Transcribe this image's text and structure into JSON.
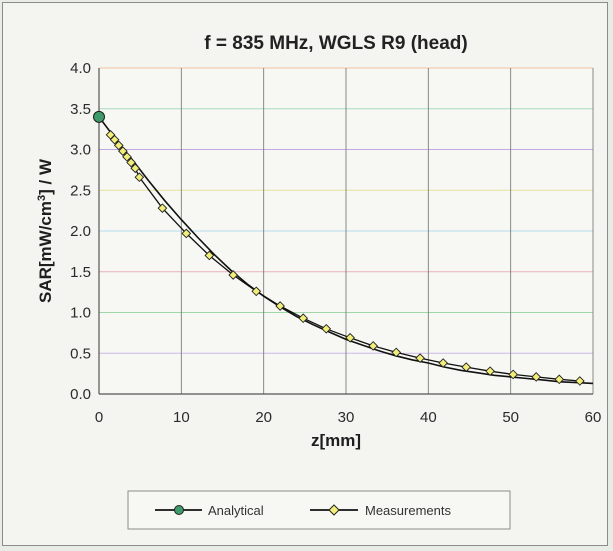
{
  "chart_data": {
    "type": "line",
    "title": "f = 835 MHz, WGLS R9 (head)",
    "xlabel": "z[mm]",
    "ylabel_parts": [
      "SAR[mW/cm",
      "3",
      "] / W"
    ],
    "xlim": [
      0,
      60
    ],
    "ylim": [
      0,
      4
    ],
    "x_ticks": [
      0,
      10,
      20,
      30,
      40,
      50,
      60
    ],
    "x_tick_labels": [
      "0",
      "10",
      "20",
      "30",
      "40",
      "50",
      "60"
    ],
    "y_ticks": [
      0,
      0.5,
      1,
      1.5,
      2,
      2.5,
      3,
      3.5,
      4
    ],
    "y_tick_labels": [
      "0.0",
      "0.5",
      "1.0",
      "1.5",
      "2.0",
      "2.5",
      "3.0",
      "3.5",
      "4.0"
    ],
    "grid": true,
    "legend_position": "bottom",
    "series": [
      {
        "name": "Analytical",
        "color": "#111111",
        "marker": "circle",
        "marker_color": "#3f9a6a",
        "x": [
          0,
          2,
          4,
          6,
          8,
          10,
          12,
          14,
          16,
          18,
          20,
          22,
          24,
          26,
          28,
          30,
          32,
          34,
          36,
          38,
          40,
          42,
          44,
          46,
          48,
          50,
          52,
          54,
          56,
          58,
          60
        ],
        "y": [
          3.4,
          3.13,
          2.88,
          2.62,
          2.37,
          2.14,
          1.92,
          1.71,
          1.52,
          1.35,
          1.2,
          1.07,
          0.95,
          0.85,
          0.76,
          0.67,
          0.6,
          0.53,
          0.47,
          0.42,
          0.38,
          0.33,
          0.29,
          0.26,
          0.23,
          0.21,
          0.19,
          0.17,
          0.15,
          0.14,
          0.13
        ],
        "marker_x": [
          0
        ],
        "marker_y": [
          3.4
        ]
      },
      {
        "name": "Measurements",
        "color": "#111111",
        "marker": "diamond",
        "marker_color": "#f2ee7a",
        "x": [
          1.4,
          1.9,
          2.4,
          2.9,
          3.4,
          3.9,
          4.4,
          4.9,
          7.7,
          10.6,
          13.4,
          16.3,
          19.1,
          22.0,
          24.8,
          27.6,
          30.5,
          33.3,
          36.1,
          39.0,
          41.8,
          44.6,
          47.5,
          50.3,
          53.1,
          55.9,
          58.4
        ],
        "y": [
          3.18,
          3.12,
          3.05,
          2.98,
          2.91,
          2.84,
          2.77,
          2.66,
          2.28,
          1.97,
          1.7,
          1.46,
          1.26,
          1.08,
          0.93,
          0.8,
          0.69,
          0.59,
          0.51,
          0.44,
          0.38,
          0.33,
          0.28,
          0.24,
          0.21,
          0.18,
          0.16
        ]
      }
    ]
  }
}
